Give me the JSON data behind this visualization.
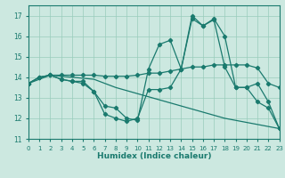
{
  "xlabel": "Humidex (Indice chaleur)",
  "background_color": "#cce8e0",
  "grid_color": "#99ccbb",
  "line_color": "#1a7a6e",
  "xlim": [
    0,
    23
  ],
  "ylim": [
    11,
    17.5
  ],
  "yticks": [
    11,
    12,
    13,
    14,
    15,
    16,
    17
  ],
  "xticks": [
    0,
    1,
    2,
    3,
    4,
    5,
    6,
    7,
    8,
    9,
    10,
    11,
    12,
    13,
    14,
    15,
    16,
    17,
    18,
    19,
    20,
    21,
    22,
    23
  ],
  "lines": [
    {
      "x": [
        0,
        1,
        2,
        3,
        4,
        5,
        6,
        7,
        8,
        9,
        10,
        11,
        12,
        13,
        14,
        15,
        16,
        17,
        18,
        19,
        20,
        21,
        22,
        23
      ],
      "y": [
        13.7,
        14.0,
        14.1,
        13.9,
        13.8,
        13.8,
        13.3,
        12.6,
        12.5,
        12.0,
        11.9,
        14.4,
        15.6,
        15.8,
        14.4,
        16.85,
        16.5,
        16.85,
        16.0,
        13.5,
        13.5,
        12.8,
        12.5,
        11.5
      ]
    },
    {
      "x": [
        0,
        1,
        2,
        3,
        4,
        5,
        6,
        7,
        8,
        9,
        10,
        11,
        12,
        13,
        14,
        15,
        16,
        17,
        18,
        19,
        20,
        21,
        22,
        23
      ],
      "y": [
        13.7,
        14.0,
        14.1,
        14.1,
        14.1,
        14.1,
        14.1,
        14.05,
        14.05,
        14.05,
        14.1,
        14.2,
        14.2,
        14.3,
        14.4,
        14.5,
        14.5,
        14.6,
        14.6,
        14.6,
        14.6,
        14.45,
        13.7,
        13.5
      ]
    },
    {
      "x": [
        0,
        1,
        2,
        3,
        4,
        5,
        6,
        7,
        8,
        9,
        10,
        11,
        12,
        13,
        14,
        15,
        16,
        17,
        18,
        19,
        20,
        21,
        22,
        23
      ],
      "y": [
        13.7,
        14.0,
        14.1,
        13.9,
        13.8,
        13.7,
        13.3,
        12.2,
        12.0,
        11.85,
        12.0,
        13.4,
        13.4,
        13.5,
        14.4,
        17.0,
        16.5,
        16.8,
        14.5,
        13.5,
        13.5,
        13.7,
        12.8,
        11.5
      ]
    },
    {
      "x": [
        0,
        2,
        4,
        6,
        8,
        10,
        12,
        14,
        16,
        18,
        20,
        22,
        23
      ],
      "y": [
        13.7,
        14.1,
        14.0,
        13.9,
        13.5,
        13.2,
        12.9,
        12.6,
        12.3,
        12.0,
        11.8,
        11.6,
        11.5
      ]
    }
  ]
}
